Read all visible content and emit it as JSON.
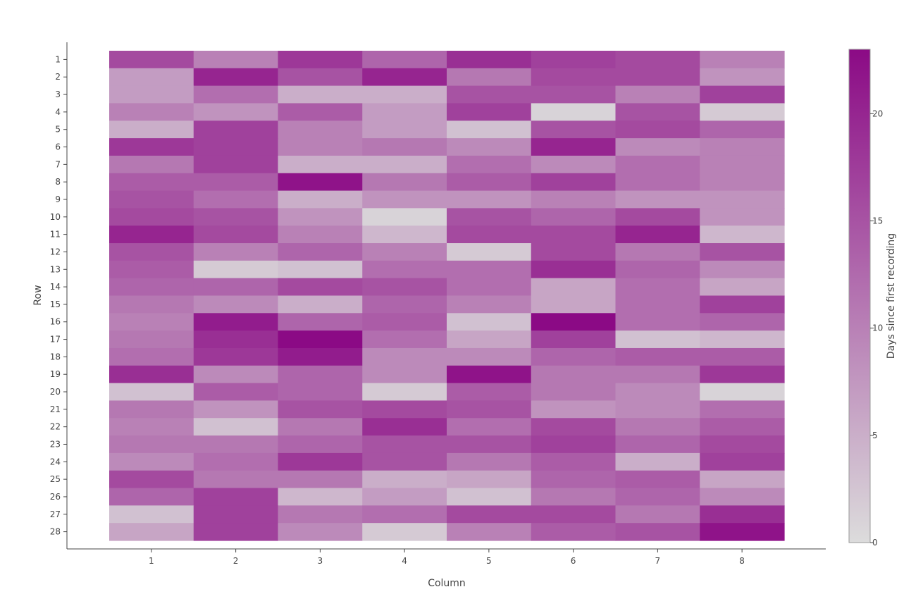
{
  "chart_data": {
    "type": "heatmap",
    "title": "",
    "xlabel": "Column",
    "ylabel": "Row",
    "x_categories": [
      "1",
      "2",
      "3",
      "4",
      "5",
      "6",
      "7",
      "8"
    ],
    "y_categories": [
      "1",
      "2",
      "3",
      "4",
      "5",
      "6",
      "7",
      "8",
      "9",
      "10",
      "11",
      "12",
      "13",
      "14",
      "15",
      "16",
      "17",
      "18",
      "19",
      "20",
      "21",
      "22",
      "23",
      "24",
      "25",
      "26",
      "27",
      "28"
    ],
    "colorbar": {
      "title": "Days since first recording",
      "range": [
        0,
        23
      ],
      "ticks": [
        0,
        5,
        10,
        15,
        20
      ],
      "colorscale": [
        "#dcdcdc",
        "#8b0a85"
      ]
    },
    "z": [
      [
        16,
        10,
        18,
        13,
        19,
        17,
        16,
        10
      ],
      [
        7,
        20,
        15,
        20,
        11,
        16,
        16,
        8
      ],
      [
        7,
        12,
        5,
        5,
        15,
        15,
        10,
        17
      ],
      [
        10,
        8,
        14,
        7,
        17,
        1,
        15,
        2
      ],
      [
        5,
        17,
        10,
        7,
        3,
        15,
        16,
        13
      ],
      [
        18,
        17,
        10,
        11,
        9,
        20,
        9,
        10
      ],
      [
        11,
        17,
        5,
        5,
        12,
        9,
        12,
        10
      ],
      [
        14,
        14,
        22,
        11,
        14,
        17,
        12,
        10
      ],
      [
        15,
        12,
        5,
        8,
        8,
        10,
        8,
        8
      ],
      [
        16,
        15,
        8,
        1,
        15,
        13,
        16,
        8
      ],
      [
        20,
        16,
        10,
        4,
        16,
        16,
        20,
        4
      ],
      [
        15,
        10,
        13,
        10,
        2,
        16,
        11,
        15
      ],
      [
        14,
        2,
        3,
        12,
        12,
        19,
        13,
        9
      ],
      [
        13,
        13,
        16,
        15,
        12,
        6,
        12,
        6
      ],
      [
        11,
        9,
        5,
        13,
        10,
        6,
        12,
        17
      ],
      [
        10,
        21,
        13,
        14,
        3,
        23,
        12,
        13
      ],
      [
        11,
        19,
        23,
        12,
        6,
        17,
        3,
        4
      ],
      [
        12,
        18,
        21,
        9,
        9,
        13,
        14,
        14
      ],
      [
        19,
        9,
        13,
        9,
        22,
        11,
        11,
        18
      ],
      [
        3,
        14,
        13,
        2,
        14,
        11,
        9,
        1
      ],
      [
        11,
        8,
        15,
        16,
        15,
        8,
        9,
        12
      ],
      [
        10,
        3,
        11,
        19,
        12,
        16,
        11,
        14
      ],
      [
        11,
        11,
        13,
        15,
        15,
        17,
        13,
        16
      ],
      [
        9,
        12,
        18,
        15,
        11,
        14,
        5,
        17
      ],
      [
        16,
        11,
        11,
        5,
        6,
        13,
        14,
        6
      ],
      [
        13,
        17,
        4,
        7,
        3,
        11,
        13,
        9
      ],
      [
        3,
        17,
        11,
        12,
        16,
        16,
        11,
        19
      ],
      [
        6,
        17,
        9,
        2,
        10,
        14,
        15,
        22
      ]
    ]
  }
}
